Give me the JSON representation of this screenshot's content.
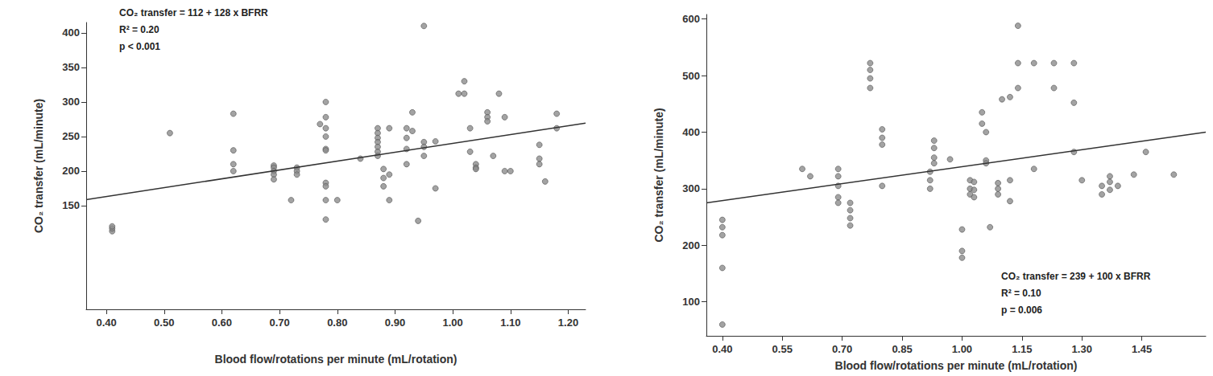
{
  "chart_data": [
    {
      "type": "scatter",
      "x_label": "Blood flow/rotations per minute (mL/rotation)",
      "y_label": "CO₂ transfer (mL/minute)",
      "annotations": [
        "CO₂ transfer = 112 + 128 x BFRR",
        "R² = 0.20",
        "p < 0.001"
      ],
      "fit": {
        "intercept": 112,
        "slope": 128
      },
      "color": "#8c8c8c",
      "marker": "circle",
      "line_style": "solid",
      "grid": false,
      "xlim": [
        0.365,
        1.23
      ],
      "xticks": [
        {
          "value": 0.4,
          "label": "0.40"
        },
        {
          "value": 0.5,
          "label": "0.50"
        },
        {
          "value": 0.6,
          "label": "0.60"
        },
        {
          "value": 0.7,
          "label": "0.70"
        },
        {
          "value": 0.8,
          "label": "0.80"
        },
        {
          "value": 0.9,
          "label": "0.90"
        },
        {
          "value": 1.0,
          "label": "1.00"
        },
        {
          "value": 1.1,
          "label": "1.10"
        },
        {
          "value": 1.2,
          "label": "1.20"
        }
      ],
      "ylim": [
        0,
        415
      ],
      "yticks": [
        150,
        200,
        250,
        300,
        350,
        400
      ],
      "x": [
        0.41,
        0.41,
        0.41,
        0.51,
        0.62,
        0.62,
        0.62,
        0.62,
        0.69,
        0.69,
        0.69,
        0.69,
        0.69,
        0.72,
        0.73,
        0.73,
        0.73,
        0.77,
        0.78,
        0.78,
        0.78,
        0.78,
        0.78,
        0.78,
        0.78,
        0.78,
        0.78,
        0.78,
        0.8,
        0.84,
        0.87,
        0.87,
        0.87,
        0.87,
        0.87,
        0.87,
        0.87,
        0.88,
        0.88,
        0.88,
        0.89,
        0.89,
        0.89,
        0.92,
        0.92,
        0.92,
        0.92,
        0.93,
        0.93,
        0.94,
        0.95,
        0.95,
        0.95,
        0.95,
        0.97,
        0.97,
        1.01,
        1.02,
        1.02,
        1.03,
        1.03,
        1.04,
        1.04,
        1.04,
        1.06,
        1.06,
        1.06,
        1.07,
        1.08,
        1.09,
        1.09,
        1.1,
        1.15,
        1.15,
        1.15,
        1.16,
        1.18,
        1.18
      ],
      "values": [
        113,
        117,
        120,
        255,
        283,
        230,
        210,
        200,
        208,
        205,
        200,
        195,
        188,
        158,
        205,
        200,
        195,
        268,
        300,
        278,
        262,
        250,
        232,
        230,
        183,
        178,
        158,
        130,
        158,
        218,
        262,
        255,
        248,
        242,
        235,
        228,
        222,
        203,
        190,
        178,
        262,
        158,
        195,
        262,
        248,
        232,
        210,
        285,
        258,
        128,
        410,
        242,
        235,
        222,
        175,
        243,
        312,
        330,
        312,
        262,
        228,
        210,
        205,
        203,
        285,
        278,
        272,
        222,
        312,
        278,
        200,
        200,
        238,
        218,
        210,
        185,
        283,
        262
      ]
    },
    {
      "type": "scatter",
      "x_label": "Blood flow/rotations per minute (mL/rotation)",
      "y_label": "CO₂ transfer (mL/minute)",
      "annotations": [
        "CO₂ transfer = 239 + 100 x BFRR",
        "R² = 0.10",
        "p = 0.006"
      ],
      "fit": {
        "intercept": 239,
        "slope": 100
      },
      "color": "#8c8c8c",
      "marker": "circle",
      "line_style": "solid",
      "grid": false,
      "xlim": [
        0.36,
        1.61
      ],
      "xticks": [
        {
          "value": 0.4,
          "label": "0.40"
        },
        {
          "value": 0.55,
          "label": "0.55"
        },
        {
          "value": 0.7,
          "label": "0.70"
        },
        {
          "value": 0.85,
          "label": "0.85"
        },
        {
          "value": 1.0,
          "label": "1.00"
        },
        {
          "value": 1.15,
          "label": "1.15"
        },
        {
          "value": 1.3,
          "label": "1.30"
        },
        {
          "value": 1.45,
          "label": "1.45"
        }
      ],
      "ylim": [
        40,
        608
      ],
      "yticks": [
        100,
        200,
        300,
        400,
        500,
        600
      ],
      "x": [
        0.4,
        0.4,
        0.4,
        0.4,
        0.4,
        0.6,
        0.62,
        0.69,
        0.69,
        0.69,
        0.69,
        0.69,
        0.72,
        0.72,
        0.72,
        0.72,
        0.77,
        0.77,
        0.77,
        0.77,
        0.8,
        0.8,
        0.8,
        0.8,
        0.92,
        0.92,
        0.92,
        0.93,
        0.93,
        0.93,
        0.93,
        0.97,
        1.0,
        1.0,
        1.0,
        1.02,
        1.02,
        1.02,
        1.03,
        1.03,
        1.03,
        1.05,
        1.05,
        1.06,
        1.06,
        1.06,
        1.07,
        1.09,
        1.09,
        1.09,
        1.1,
        1.12,
        1.12,
        1.12,
        1.14,
        1.14,
        1.14,
        1.18,
        1.18,
        1.23,
        1.23,
        1.28,
        1.28,
        1.28,
        1.3,
        1.35,
        1.35,
        1.37,
        1.37,
        1.37,
        1.39,
        1.43,
        1.46,
        1.53
      ],
      "values": [
        245,
        232,
        218,
        160,
        60,
        335,
        322,
        335,
        322,
        305,
        285,
        275,
        275,
        262,
        248,
        235,
        522,
        510,
        495,
        478,
        405,
        390,
        378,
        305,
        330,
        315,
        300,
        385,
        372,
        355,
        345,
        352,
        228,
        190,
        178,
        315,
        300,
        290,
        312,
        298,
        285,
        435,
        415,
        400,
        350,
        345,
        232,
        310,
        300,
        290,
        458,
        462,
        315,
        278,
        588,
        522,
        478,
        522,
        335,
        522,
        478,
        522,
        452,
        365,
        315,
        305,
        290,
        322,
        312,
        298,
        305,
        325,
        365,
        325
      ]
    }
  ]
}
